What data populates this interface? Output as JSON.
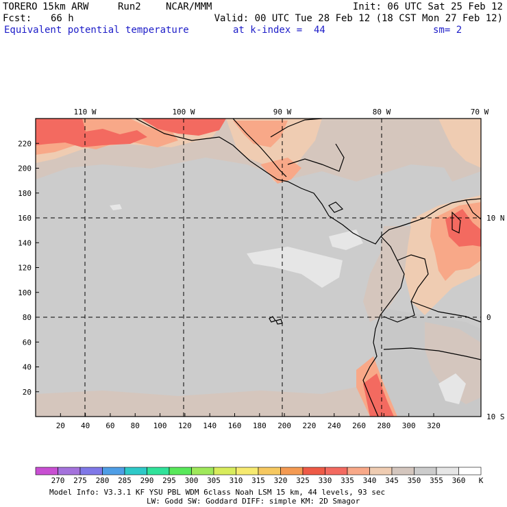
{
  "header": {
    "model": "TORERO",
    "resolution": "15km ARW",
    "run": "Run2",
    "org": "NCAR/MMM",
    "init": "Init: 06 UTC Sat 25 Feb 12",
    "fcst_label": "Fcst:",
    "fcst_value": "66 h",
    "valid": "Valid: 00 UTC Tue 28 Feb 12 (18 CST Mon 27 Feb 12)",
    "field": "Equivalent potential temperature",
    "level": "at k-index =  44",
    "smoothing": "sm= 2"
  },
  "map": {
    "lon_labels": [
      "110 W",
      "100 W",
      "90 W",
      "80 W",
      "70 W"
    ],
    "lat_labels": [
      "10 N",
      "0",
      "10 S"
    ],
    "x_ticks": [
      "20",
      "40",
      "60",
      "80",
      "100",
      "120",
      "140",
      "160",
      "180",
      "200",
      "220",
      "240",
      "260",
      "280",
      "300",
      "320"
    ],
    "y_ticks": [
      "20",
      "40",
      "60",
      "80",
      "100",
      "120",
      "140",
      "160",
      "180",
      "200",
      "220"
    ]
  },
  "colorbar": {
    "values": [
      "270",
      "275",
      "280",
      "285",
      "290",
      "295",
      "300",
      "305",
      "310",
      "315",
      "320",
      "325",
      "330",
      "335",
      "340",
      "345",
      "350",
      "355",
      "360"
    ],
    "unit": "K",
    "colors": [
      "#c84fd2",
      "#a472dc",
      "#7f78e8",
      "#4f9ee6",
      "#2ec9c8",
      "#30e29a",
      "#58e85a",
      "#9fe85a",
      "#d8ec5c",
      "#f6ea70",
      "#f6c860",
      "#f49a52",
      "#ee5a46",
      "#f36a60",
      "#f8a888",
      "#efccb2",
      "#d4c6be",
      "#cccccc",
      "#e6e6e6",
      "#ffffff"
    ]
  },
  "footer": {
    "line1": "Model Info: V3.3.1   KF    YSU PBL  WDM 6class  Noah LSM  15 km,   44 levels,   93 sec",
    "line2": "LW: Godd SW: Goddard DIFF: simple KM: 2D Smagor"
  }
}
